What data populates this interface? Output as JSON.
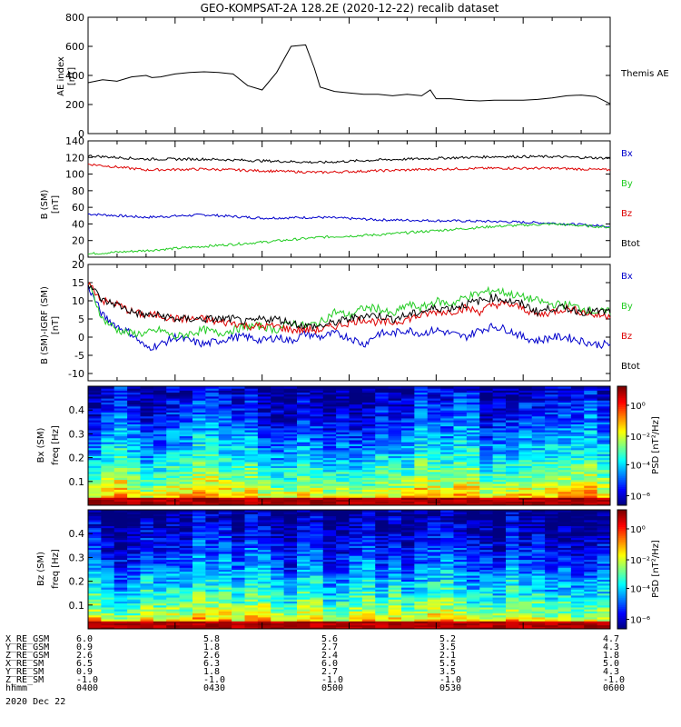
{
  "title": "GEO-KOMPSAT-2A 128.2E (2020-12-22) recalib dataset",
  "colors": {
    "black": "#000000",
    "red": "#dd0000",
    "blue": "#0000cc",
    "green": "#22cc22"
  },
  "chart_data": [
    {
      "type": "line",
      "ylabel_1": "AE index",
      "ylabel_2": "[nT]",
      "ylim": [
        0,
        800
      ],
      "yticks": [
        "0",
        "200",
        "400",
        "600",
        "800"
      ],
      "x_minutes": [
        0,
        5,
        10,
        15,
        20,
        22,
        25,
        30,
        35,
        40,
        45,
        50,
        55,
        60,
        65,
        70,
        75,
        78,
        80,
        85,
        90,
        95,
        100,
        105,
        110,
        115,
        118,
        120,
        125,
        130,
        135,
        140,
        145,
        150,
        155,
        160,
        165,
        170,
        175,
        180
      ],
      "values": [
        350,
        370,
        360,
        390,
        400,
        385,
        390,
        410,
        420,
        425,
        420,
        410,
        330,
        300,
        420,
        600,
        610,
        450,
        320,
        290,
        280,
        270,
        270,
        260,
        270,
        260,
        300,
        240,
        240,
        230,
        225,
        230,
        230,
        230,
        235,
        245,
        260,
        265,
        255,
        205
      ],
      "series": [
        {
          "name": "Themis AE",
          "color": "#000000"
        }
      ]
    },
    {
      "type": "line",
      "ylabel_1": "B (SM)",
      "ylabel_2": "[nT]",
      "ylim": [
        0,
        140
      ],
      "yticks": [
        "0",
        "20",
        "40",
        "60",
        "80",
        "100",
        "120",
        "140"
      ],
      "x_minutes": [
        0,
        20,
        40,
        60,
        80,
        100,
        120,
        140,
        160,
        180
      ],
      "series": [
        {
          "name": "Bx",
          "color": "#0000cc",
          "values": [
            52,
            48,
            51,
            47,
            48,
            45,
            44,
            43,
            41,
            37
          ]
        },
        {
          "name": "By",
          "color": "#22cc22",
          "values": [
            4,
            8,
            13,
            18,
            24,
            27,
            32,
            37,
            40,
            36
          ]
        },
        {
          "name": "Bz",
          "color": "#dd0000",
          "values": [
            112,
            105,
            106,
            104,
            102,
            104,
            106,
            107,
            107,
            105
          ]
        },
        {
          "name": "Btot",
          "color": "#000000",
          "values": [
            122,
            118,
            118,
            116,
            114,
            117,
            119,
            121,
            121,
            119
          ]
        }
      ]
    },
    {
      "type": "line",
      "ylabel_1": "B (SM)-IGRF (SM)",
      "ylabel_2": "[nT]",
      "ylim": [
        -12,
        20
      ],
      "yticks": [
        "-10",
        "-5",
        "0",
        "5",
        "10",
        "15",
        "20"
      ],
      "x_minutes": [
        0,
        5,
        10,
        15,
        20,
        25,
        30,
        35,
        40,
        45,
        50,
        55,
        60,
        65,
        70,
        75,
        80,
        85,
        90,
        95,
        100,
        105,
        110,
        115,
        120,
        125,
        130,
        135,
        140,
        145,
        150,
        155,
        160,
        165,
        170,
        175,
        180
      ],
      "series": [
        {
          "name": "Bx",
          "color": "#0000cc",
          "values": [
            14,
            6,
            3,
            1,
            -3,
            -2,
            0,
            -1,
            -2,
            -1,
            0,
            0,
            -1,
            0,
            -1,
            1,
            0,
            1,
            0,
            -2,
            1,
            1,
            2,
            1,
            2,
            1,
            0,
            2,
            3,
            2,
            0,
            -1,
            0,
            0,
            -1,
            -2,
            -2
          ]
        },
        {
          "name": "By",
          "color": "#22cc22",
          "values": [
            15,
            5,
            2,
            1,
            1,
            2,
            0,
            1,
            2,
            1,
            2,
            3,
            3,
            2,
            4,
            3,
            4,
            7,
            6,
            8,
            8,
            6,
            9,
            8,
            10,
            9,
            11,
            12,
            13,
            12,
            11,
            10,
            9,
            9,
            8,
            7,
            7
          ]
        },
        {
          "name": "Bz",
          "color": "#dd0000",
          "values": [
            15,
            10,
            9,
            7,
            6,
            6,
            5,
            5,
            5,
            4,
            4,
            3,
            3,
            3,
            2,
            2,
            2,
            3,
            4,
            5,
            4,
            4,
            5,
            6,
            7,
            7,
            8,
            7,
            9,
            9,
            8,
            6,
            7,
            8,
            7,
            6,
            6
          ]
        },
        {
          "name": "Btot",
          "color": "#000000",
          "values": [
            15,
            10,
            9,
            7,
            6,
            6,
            5,
            5,
            5,
            5,
            5,
            4,
            5,
            5,
            4,
            3,
            3,
            4,
            5,
            6,
            6,
            5,
            6,
            7,
            8,
            8,
            9,
            10,
            11,
            10,
            9,
            7,
            8,
            8,
            7,
            7,
            7
          ]
        }
      ]
    },
    {
      "type": "heatmap",
      "ylabel_1": "Bx (SM)",
      "ylabel_2": "freq [Hz]",
      "yticks": [
        "0.1",
        "0.2",
        "0.3",
        "0.4"
      ],
      "colorbar_label": "PSD [nT²/Hz]",
      "colorbar_ticks": [
        "10⁰",
        "10⁻²",
        "10⁻⁴",
        "10⁻⁶"
      ]
    },
    {
      "type": "heatmap",
      "ylabel_1": "Bz (SM)",
      "ylabel_2": "freq [Hz]",
      "yticks": [
        "0.1",
        "0.2",
        "0.3",
        "0.4"
      ],
      "colorbar_label": "PSD [nT²/Hz]",
      "colorbar_ticks": [
        "10⁰",
        "10⁻²",
        "10⁻⁴",
        "10⁻⁶"
      ]
    }
  ],
  "orbit_table": {
    "rows": [
      {
        "label": "X_RE_GSM",
        "values": [
          "6.0",
          "5.8",
          "5.6",
          "5.2",
          "4.7"
        ]
      },
      {
        "label": "Y_RE_GSM",
        "values": [
          "0.9",
          "1.8",
          "2.7",
          "3.5",
          "4.3"
        ]
      },
      {
        "label": "Z_RE_GSM",
        "values": [
          "2.6",
          "2.6",
          "2.4",
          "2.1",
          "1.8"
        ]
      },
      {
        "label": "X_RE_SM",
        "values": [
          "6.5",
          "6.3",
          "6.0",
          "5.5",
          "5.0"
        ]
      },
      {
        "label": "Y_RE_SM",
        "values": [
          "0.9",
          "1.8",
          "2.7",
          "3.5",
          "4.3"
        ]
      },
      {
        "label": "Z_RE_SM",
        "values": [
          "-1.0",
          "-1.0",
          "-1.0",
          "-1.0",
          "-1.0"
        ]
      },
      {
        "label": "hhmm",
        "values": [
          "0400",
          "0430",
          "0500",
          "0530",
          "0600"
        ]
      }
    ],
    "date": "2020 Dec 22"
  }
}
